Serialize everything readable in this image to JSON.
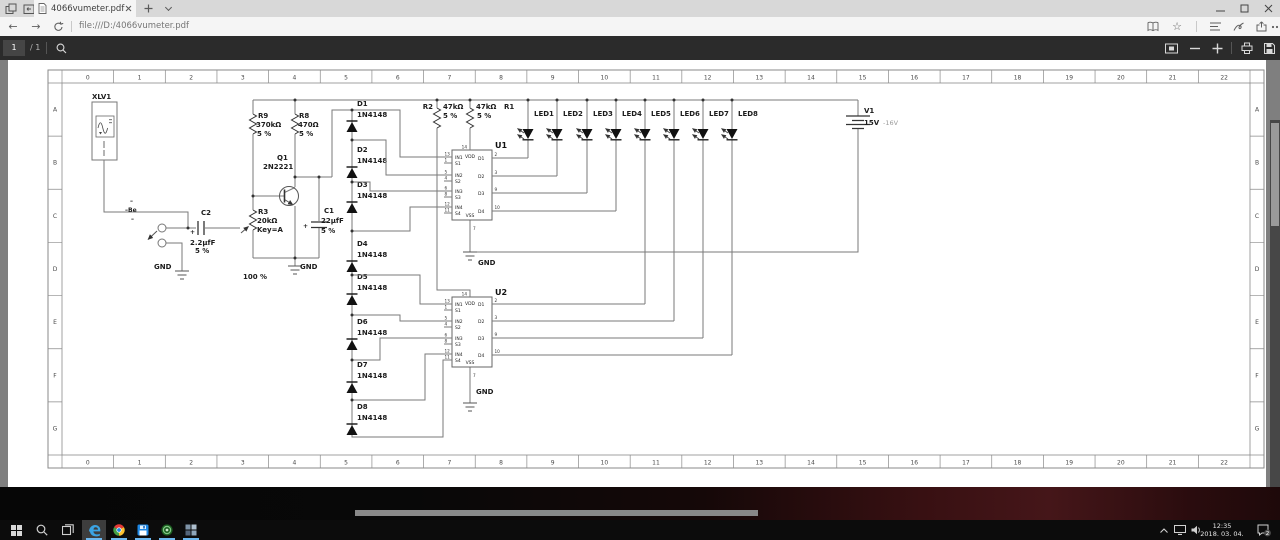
{
  "browser": {
    "tab_title": "4066vumeter.pdf",
    "url": "file:///D:/4066vumeter.pdf",
    "page_current": "1",
    "page_total": "/ 1"
  },
  "taskbar": {
    "time": "12:35",
    "date": "2018. 03. 04.",
    "notification_count": "2"
  },
  "ruler": {
    "columns": [
      "0",
      "1",
      "2",
      "3",
      "4",
      "5",
      "6",
      "7",
      "8",
      "9",
      "10",
      "11",
      "12",
      "13",
      "14",
      "15",
      "16",
      "17",
      "18",
      "19",
      "20",
      "21",
      "22"
    ],
    "rows": [
      "A",
      "B",
      "C",
      "D",
      "E",
      "F",
      "G"
    ]
  },
  "schematic": {
    "xlv1": {
      "ref": "XLV1"
    },
    "input_pins": [
      "–",
      "–Be",
      "–"
    ],
    "c2": {
      "ref": "C2",
      "value": "2.2µfF",
      "tol": "5 %",
      "polarity": "+"
    },
    "r3": {
      "ref": "R3",
      "value": "20kΩ",
      "key": "Key=A",
      "setting": "100 %"
    },
    "r9": {
      "ref": "R9",
      "value": "370kΩ",
      "tol": "5 %"
    },
    "r8": {
      "ref": "R8",
      "value": "470Ω",
      "tol": "5 %"
    },
    "q1": {
      "ref": "Q1",
      "value": "2N2221"
    },
    "c1": {
      "ref": "C1",
      "value": "22µfF",
      "tol": "5 %",
      "polarity": "+"
    },
    "r2": {
      "ref": "R2",
      "value": "47kΩ",
      "tol": "5 %"
    },
    "r1": {
      "ref": "R1",
      "value": "47kΩ",
      "tol": "5 %"
    },
    "v1": {
      "ref": "V1",
      "value": "15V",
      "note": "-16V"
    },
    "gnd_label": "GND",
    "ic_u1": {
      "ref": "U1"
    },
    "ic_u2": {
      "ref": "U2"
    },
    "ic_pins": {
      "vdd": "VDD",
      "vss": "VSS",
      "top_num": "14",
      "bottom_num": "7",
      "left": [
        {
          "name": "IN1",
          "num": "13"
        },
        {
          "name": "S1",
          "num": "1"
        },
        {
          "name": "IN2",
          "num": "5"
        },
        {
          "name": "S2",
          "num": "4"
        },
        {
          "name": "IN3",
          "num": "6"
        },
        {
          "name": "S3",
          "num": "8"
        },
        {
          "name": "IN4",
          "num": "12"
        },
        {
          "name": "S4",
          "num": "11"
        }
      ],
      "right": [
        {
          "name": "D1",
          "num": "2"
        },
        {
          "name": "D2",
          "num": "3"
        },
        {
          "name": "D3",
          "num": "9"
        },
        {
          "name": "D4",
          "num": "10"
        }
      ]
    },
    "diodes": [
      {
        "ref": "D1",
        "value": "1N4148"
      },
      {
        "ref": "D2",
        "value": "1N4148"
      },
      {
        "ref": "D3",
        "value": "1N4148"
      },
      {
        "ref": "D4",
        "value": "1N4148"
      },
      {
        "ref": "D5",
        "value": "1N4148"
      },
      {
        "ref": "D6",
        "value": "1N4148"
      },
      {
        "ref": "D7",
        "value": "1N4148"
      },
      {
        "ref": "D8",
        "value": "1N4148"
      }
    ],
    "leds": [
      "LED1",
      "LED2",
      "LED3",
      "LED4",
      "LED5",
      "LED6",
      "LED7",
      "LED8"
    ]
  }
}
